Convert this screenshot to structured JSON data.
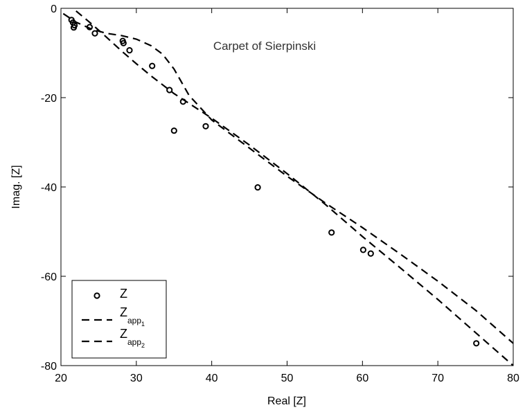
{
  "chart_data": {
    "type": "scatter",
    "title": "",
    "annotation": "Carpet of Sierpinski",
    "xlabel": "Real [Z]",
    "ylabel": "Imag. [Z]",
    "xlim": [
      20,
      80
    ],
    "ylim": [
      -80,
      0
    ],
    "xticks": [
      20,
      30,
      40,
      50,
      60,
      70,
      80
    ],
    "yticks": [
      0,
      -20,
      -40,
      -60,
      -80
    ],
    "grid": false,
    "legend_placement": "bottom-left",
    "colors": {
      "axis": "#000000",
      "series": "#000000",
      "background": "#ffffff"
    },
    "series": [
      {
        "name": "Z",
        "name_sub": "",
        "style": "circle-markers",
        "points": [
          [
            21.4,
            -2.6
          ],
          [
            21.6,
            -3.2
          ],
          [
            21.8,
            -3.8
          ],
          [
            21.7,
            -4.3
          ],
          [
            23.8,
            -4.2
          ],
          [
            24.5,
            -5.6
          ],
          [
            28.2,
            -7.3
          ],
          [
            28.3,
            -7.8
          ],
          [
            29.1,
            -9.4
          ],
          [
            32.1,
            -12.9
          ],
          [
            34.4,
            -18.3
          ],
          [
            36.2,
            -20.9
          ],
          [
            35.0,
            -27.4
          ],
          [
            39.2,
            -26.4
          ],
          [
            46.1,
            -40.1
          ],
          [
            55.9,
            -50.2
          ],
          [
            60.1,
            -54.1
          ],
          [
            61.1,
            -54.9
          ],
          [
            75.1,
            -75.0
          ]
        ]
      },
      {
        "name": "Z",
        "name_sub": "app",
        "name_subsub": "1",
        "style": "dashed-line",
        "points": [
          [
            20.3,
            -1.2
          ],
          [
            22,
            -3.1
          ],
          [
            24,
            -4.6
          ],
          [
            26,
            -5.6
          ],
          [
            28,
            -6.1
          ],
          [
            30,
            -6.9
          ],
          [
            32,
            -8.4
          ],
          [
            33.5,
            -10.3
          ],
          [
            35,
            -13.6
          ],
          [
            37,
            -19.5
          ],
          [
            40,
            -25.0
          ],
          [
            45,
            -31.3
          ],
          [
            50,
            -37.6
          ],
          [
            55,
            -43.5
          ],
          [
            60,
            -49.1
          ],
          [
            65,
            -55.0
          ],
          [
            70,
            -61.1
          ],
          [
            75,
            -67.6
          ],
          [
            80,
            -75.0
          ]
        ]
      },
      {
        "name": "Z",
        "name_sub": "app",
        "name_subsub": "2",
        "style": "dashed-line",
        "points": [
          [
            22,
            -0.6
          ],
          [
            24,
            -3.4
          ],
          [
            26,
            -6.4
          ],
          [
            28,
            -9.5
          ],
          [
            30,
            -12.4
          ],
          [
            32,
            -15.2
          ],
          [
            35,
            -19.1
          ],
          [
            40,
            -24.6
          ],
          [
            45,
            -30.6
          ],
          [
            50,
            -37.0
          ],
          [
            55,
            -43.8
          ],
          [
            60,
            -51.1
          ],
          [
            65,
            -58.1
          ],
          [
            70,
            -65.2
          ],
          [
            75,
            -72.6
          ],
          [
            80,
            -80.0
          ]
        ]
      }
    ]
  }
}
